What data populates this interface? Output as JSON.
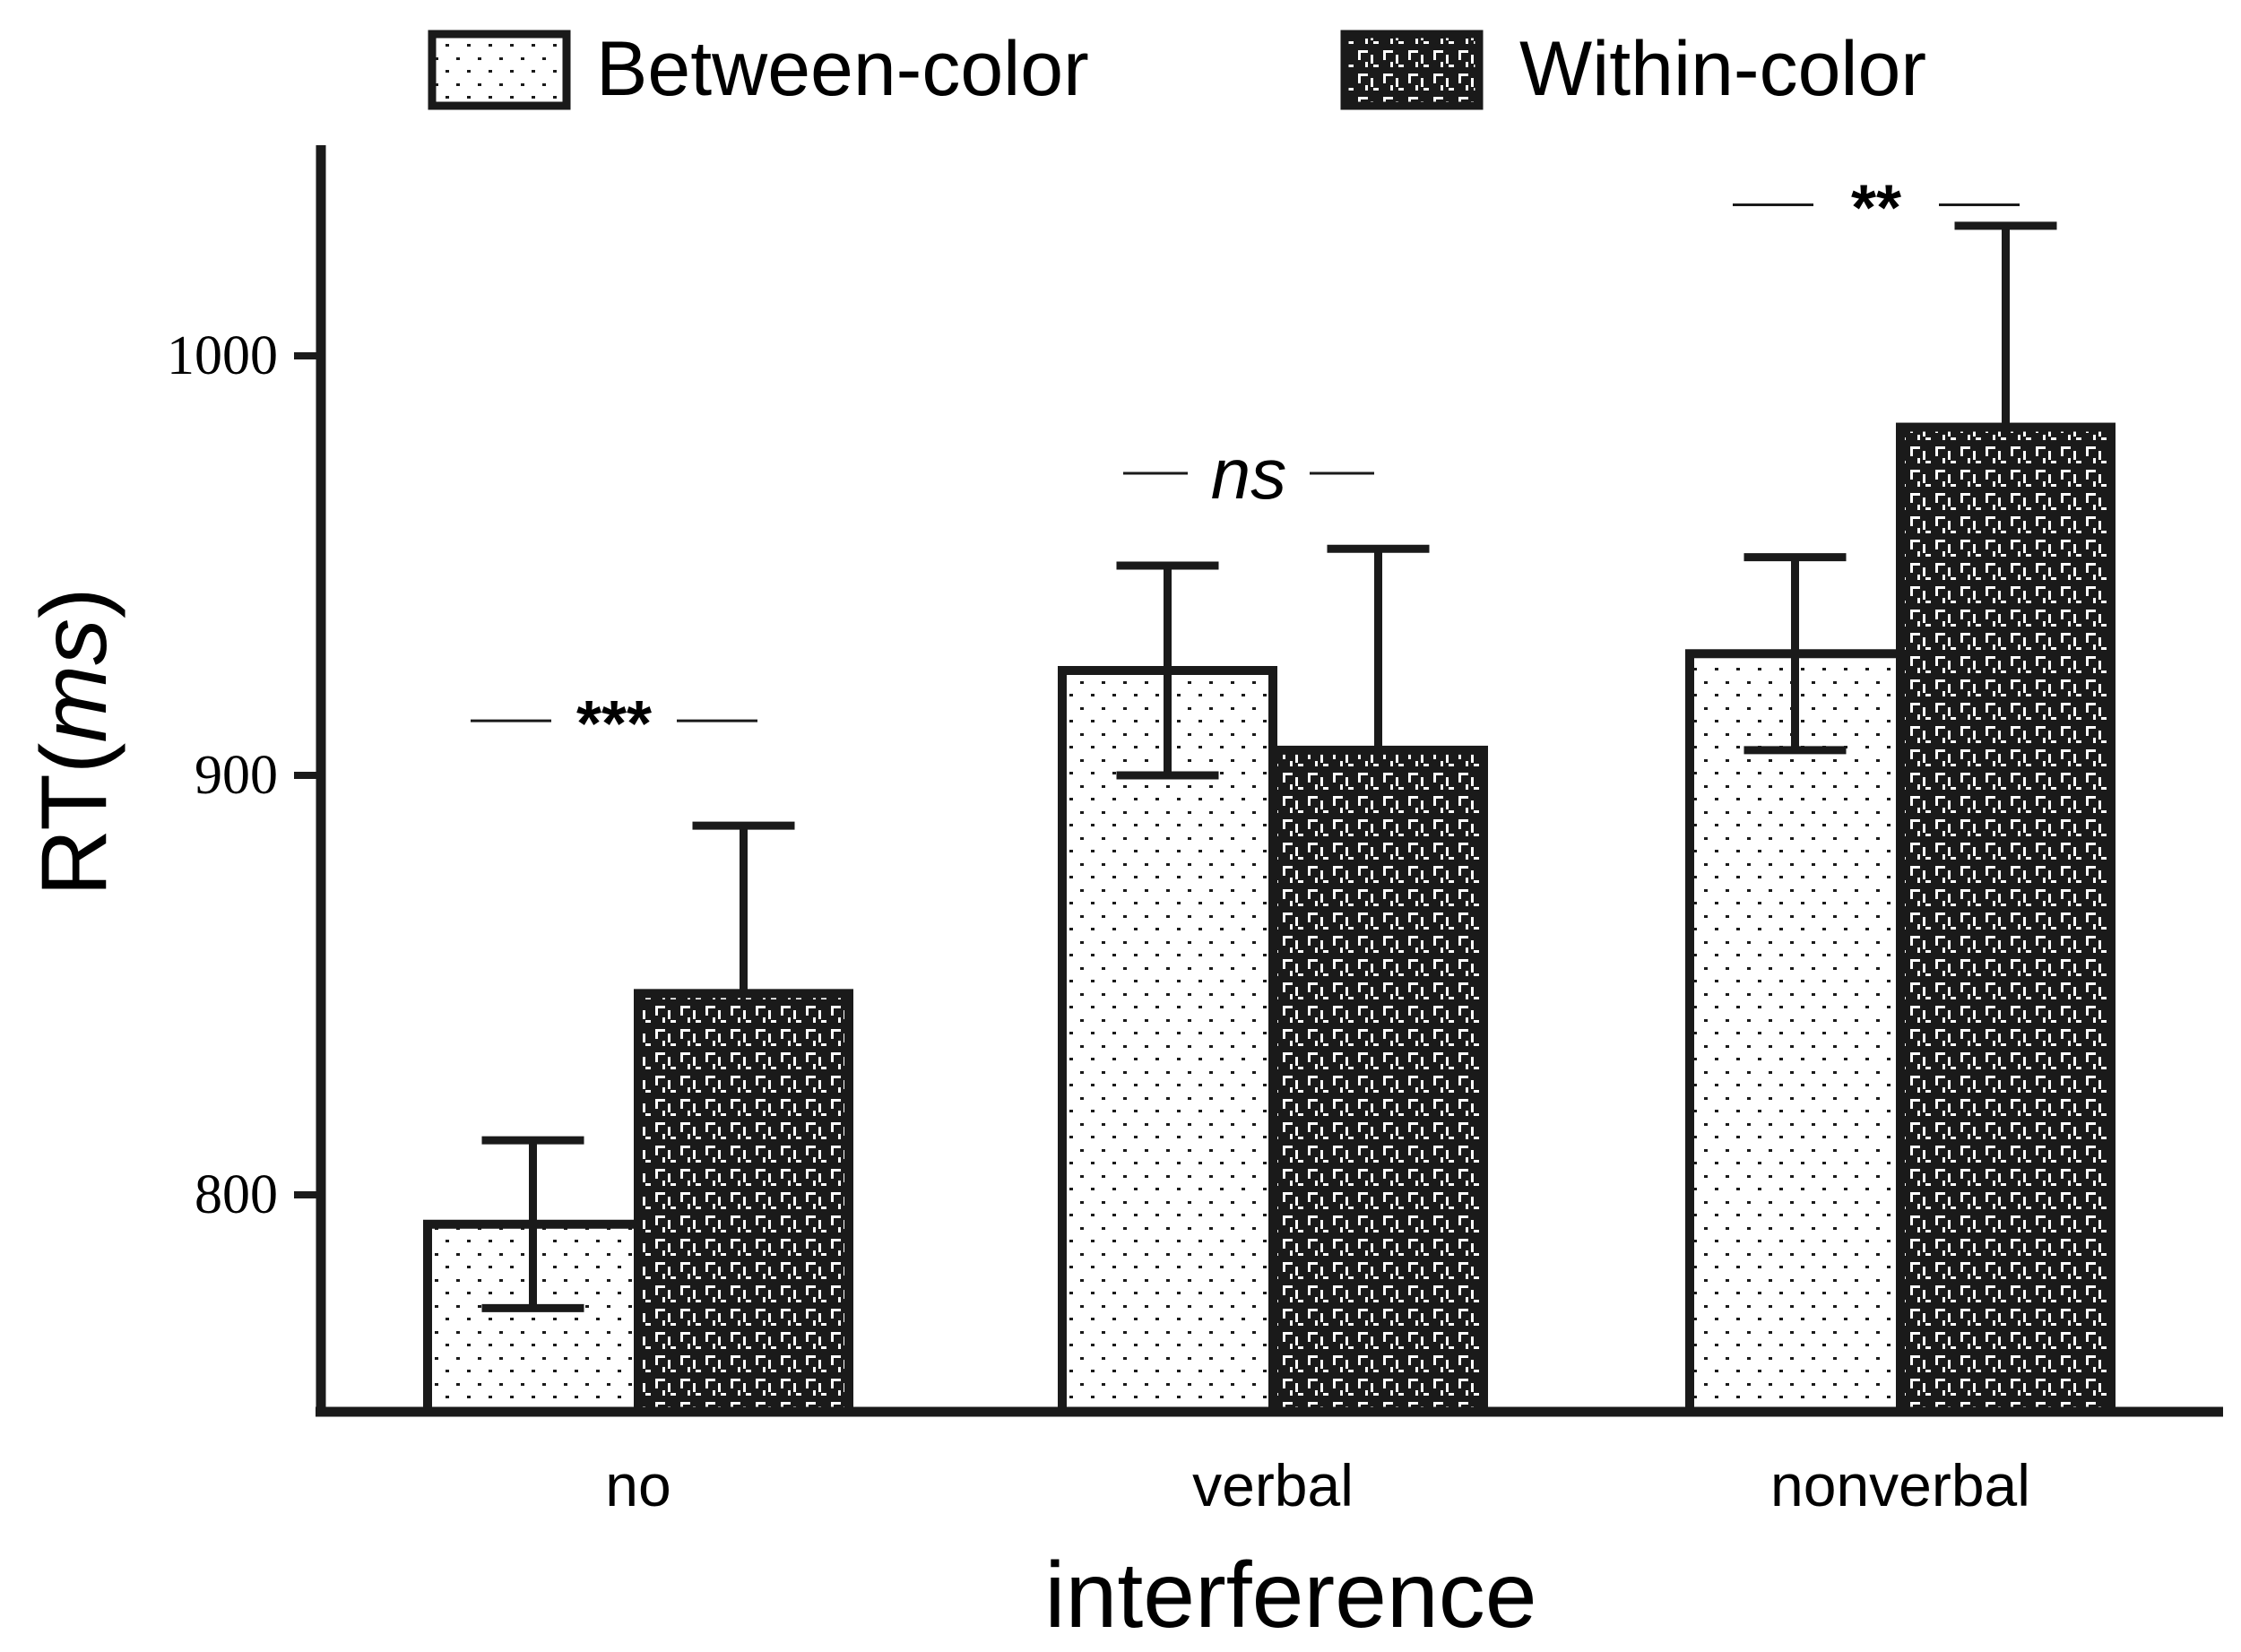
{
  "chart_data": {
    "type": "bar",
    "title": "",
    "xlabel": "interference",
    "ylabel": {
      "prefix": "RT(",
      "italic": "ms",
      "suffix": ")"
    },
    "categories": [
      "no",
      "verbal",
      "nonverbal"
    ],
    "ylim": [
      752,
      1050
    ],
    "yticks": [
      800,
      900,
      1000
    ],
    "series": [
      {
        "name": "Between-color",
        "pattern": "dots",
        "values": [
          793,
          925,
          929
        ],
        "errors": [
          20,
          25,
          23
        ]
      },
      {
        "name": "Within-color",
        "pattern": "dashes",
        "values": [
          848,
          906,
          983
        ],
        "errors": [
          40,
          48,
          48
        ]
      }
    ],
    "significance": [
      {
        "category": "no",
        "label": "***",
        "italic": false,
        "value": 913
      },
      {
        "category": "verbal",
        "label": "ns",
        "italic": true,
        "value": 972
      },
      {
        "category": "nonverbal",
        "label": "**",
        "italic": false,
        "value": 1036
      }
    ],
    "legend_position": "top",
    "colors": {
      "fill_light": "#ffffff",
      "fill_dark": "#1a1a1a",
      "stroke": "#1a1a1a"
    }
  }
}
